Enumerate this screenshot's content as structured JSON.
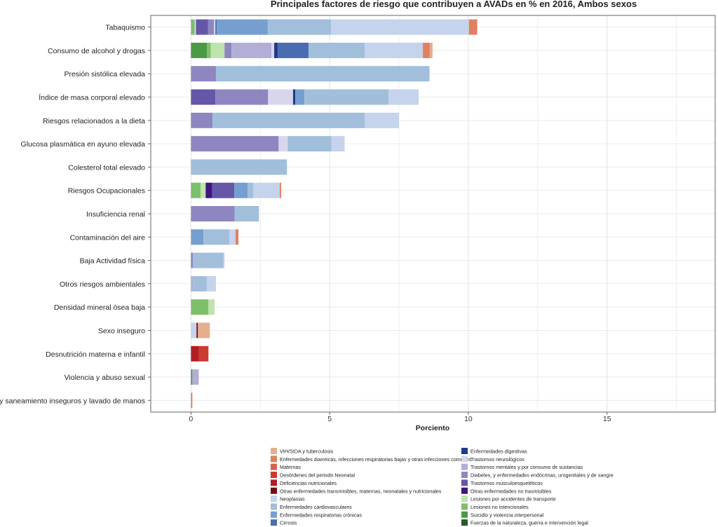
{
  "chart_data": {
    "type": "bar",
    "orientation": "horizontal",
    "stacked": true,
    "title": "Principales factores de riesgo que contribuyen a AVADs en % en 2016, Ambos sexos",
    "xlabel": "Porciento",
    "ylabel": "",
    "xlim": [
      -1.45,
      18.9
    ],
    "xticks": [
      0,
      5,
      10,
      15
    ],
    "grid": true,
    "legend_position": "bottom",
    "causes": [
      {
        "name": "VIH/SIDA y tuberculosis",
        "color": "#e6ae8e"
      },
      {
        "name": "Enfermedades diarreicas, infecciones respiratorias bajas y otras infecciones comunes",
        "color": "#e08060"
      },
      {
        "name": "Maternas",
        "color": "#d9604a"
      },
      {
        "name": "Desórdenes del periodo Neonatal",
        "color": "#cc3a33"
      },
      {
        "name": "Deficiencias nutricionales",
        "color": "#b01e24"
      },
      {
        "name": "Otras enfermedades transmisibles, maternas, neonatales y nutricionales",
        "color": "#6e0f12"
      },
      {
        "name": "Neoplasias",
        "color": "#c5d3ec"
      },
      {
        "name": "Enfermedades cardiovasculares",
        "color": "#a1bedb"
      },
      {
        "name": "Enfermedades respiratorias crónicas",
        "color": "#749fd0"
      },
      {
        "name": "Cirrosis",
        "color": "#4a6cb0"
      },
      {
        "name": "Enfermedades digestivas",
        "color": "#22398f"
      },
      {
        "name": "Trastornos neurológicos",
        "color": "#d8d6ec"
      },
      {
        "name": "Trastornos mentales y por consumo de sustancias",
        "color": "#b3aed6"
      },
      {
        "name": "Diabetes, y enfermedades endócrinas, urogenitales y de sangre",
        "color": "#8e86c0"
      },
      {
        "name": "Trastornos musculoesqueléticos",
        "color": "#6556a8"
      },
      {
        "name": "Otras enfermedades no trasmisibles",
        "color": "#40157e"
      },
      {
        "name": "Lesiones por accidentes de transporte",
        "color": "#bfe3ac"
      },
      {
        "name": "Lesiones no intencionales",
        "color": "#7dbf6b"
      },
      {
        "name": "Suicidio y violencia interpersonal",
        "color": "#4a9a46"
      },
      {
        "name": "Fuerzas de la naturaleza, guerra e intervención legal",
        "color": "#225e26"
      }
    ],
    "bars": [
      {
        "category": "Tabaquismo",
        "segments": [
          [
            17,
            0.13
          ],
          [
            11,
            0.05
          ],
          [
            14,
            0.43
          ],
          [
            13,
            0.22
          ],
          [
            11,
            0.05
          ],
          [
            9,
            0.05
          ],
          [
            8,
            1.84
          ],
          [
            7,
            2.28
          ],
          [
            6,
            4.97
          ],
          [
            1,
            0.3
          ]
        ]
      },
      {
        "category": "Consumo de alcohol y drogas",
        "segments": [
          [
            18,
            0.58
          ],
          [
            17,
            0.13
          ],
          [
            16,
            0.5
          ],
          [
            13,
            0.25
          ],
          [
            12,
            1.44
          ],
          [
            11,
            0.1
          ],
          [
            10,
            0.13
          ],
          [
            9,
            1.11
          ],
          [
            7,
            2.02
          ],
          [
            6,
            2.1
          ],
          [
            1,
            0.25
          ],
          [
            0,
            0.1
          ]
        ]
      },
      {
        "category": "Presión sistólica elevada",
        "segments": [
          [
            13,
            0.9
          ],
          [
            7,
            7.7
          ]
        ]
      },
      {
        "category": "Índice de masa corporal elevado",
        "segments": [
          [
            14,
            0.88
          ],
          [
            13,
            1.9
          ],
          [
            11,
            0.9
          ],
          [
            10,
            0.08
          ],
          [
            8,
            0.33
          ],
          [
            7,
            3.03
          ],
          [
            6,
            1.09
          ]
        ]
      },
      {
        "category": "Riesgos relacionados a la dieta",
        "segments": [
          [
            13,
            0.78
          ],
          [
            7,
            5.48
          ],
          [
            6,
            1.24
          ]
        ]
      },
      {
        "category": "Glucosa plasmática en ayuno elevada",
        "segments": [
          [
            13,
            3.16
          ],
          [
            11,
            0.33
          ],
          [
            7,
            1.57
          ],
          [
            6,
            0.48
          ]
        ]
      },
      {
        "category": "Colesterol total elevado",
        "segments": [
          [
            7,
            3.46
          ]
        ]
      },
      {
        "category": "Riesgos Ocupacionales",
        "segments": [
          [
            17,
            0.35
          ],
          [
            16,
            0.18
          ],
          [
            15,
            0.23
          ],
          [
            14,
            0.8
          ],
          [
            8,
            0.48
          ],
          [
            7,
            0.2
          ],
          [
            6,
            0.96
          ],
          [
            1,
            0.05
          ]
        ]
      },
      {
        "category": "Insuficiencia renal",
        "segments": [
          [
            13,
            1.57
          ],
          [
            7,
            0.88
          ]
        ]
      },
      {
        "category": "Contaminación del aire",
        "segments": [
          [
            8,
            0.45
          ],
          [
            7,
            0.93
          ],
          [
            6,
            0.23
          ],
          [
            1,
            0.1
          ]
        ]
      },
      {
        "category": "Baja Actividad física",
        "segments": [
          [
            13,
            0.07
          ],
          [
            7,
            1.1
          ],
          [
            6,
            0.04
          ]
        ]
      },
      {
        "category": "Otros riesgos ambientales",
        "segments": [
          [
            12,
            0.07
          ],
          [
            7,
            0.5
          ],
          [
            6,
            0.33
          ]
        ]
      },
      {
        "category": "Densidad mineral ósea baja",
        "segments": [
          [
            17,
            0.63
          ],
          [
            16,
            0.22
          ]
        ]
      },
      {
        "category": "Sexo inseguro",
        "segments": [
          [
            6,
            0.2
          ],
          [
            5,
            0.05
          ],
          [
            0,
            0.43
          ]
        ]
      },
      {
        "category": "Desnutrición materna e infantil",
        "segments": [
          [
            4,
            0.28
          ],
          [
            3,
            0.35
          ]
        ]
      },
      {
        "category": "Violencia y abuso sexual",
        "segments": [
          [
            18,
            0.05
          ],
          [
            12,
            0.23
          ]
        ]
      },
      {
        "category": "Agua y saneamiento inseguros y lavado de manos",
        "segments": [
          [
            1,
            0.05
          ]
        ]
      }
    ]
  }
}
